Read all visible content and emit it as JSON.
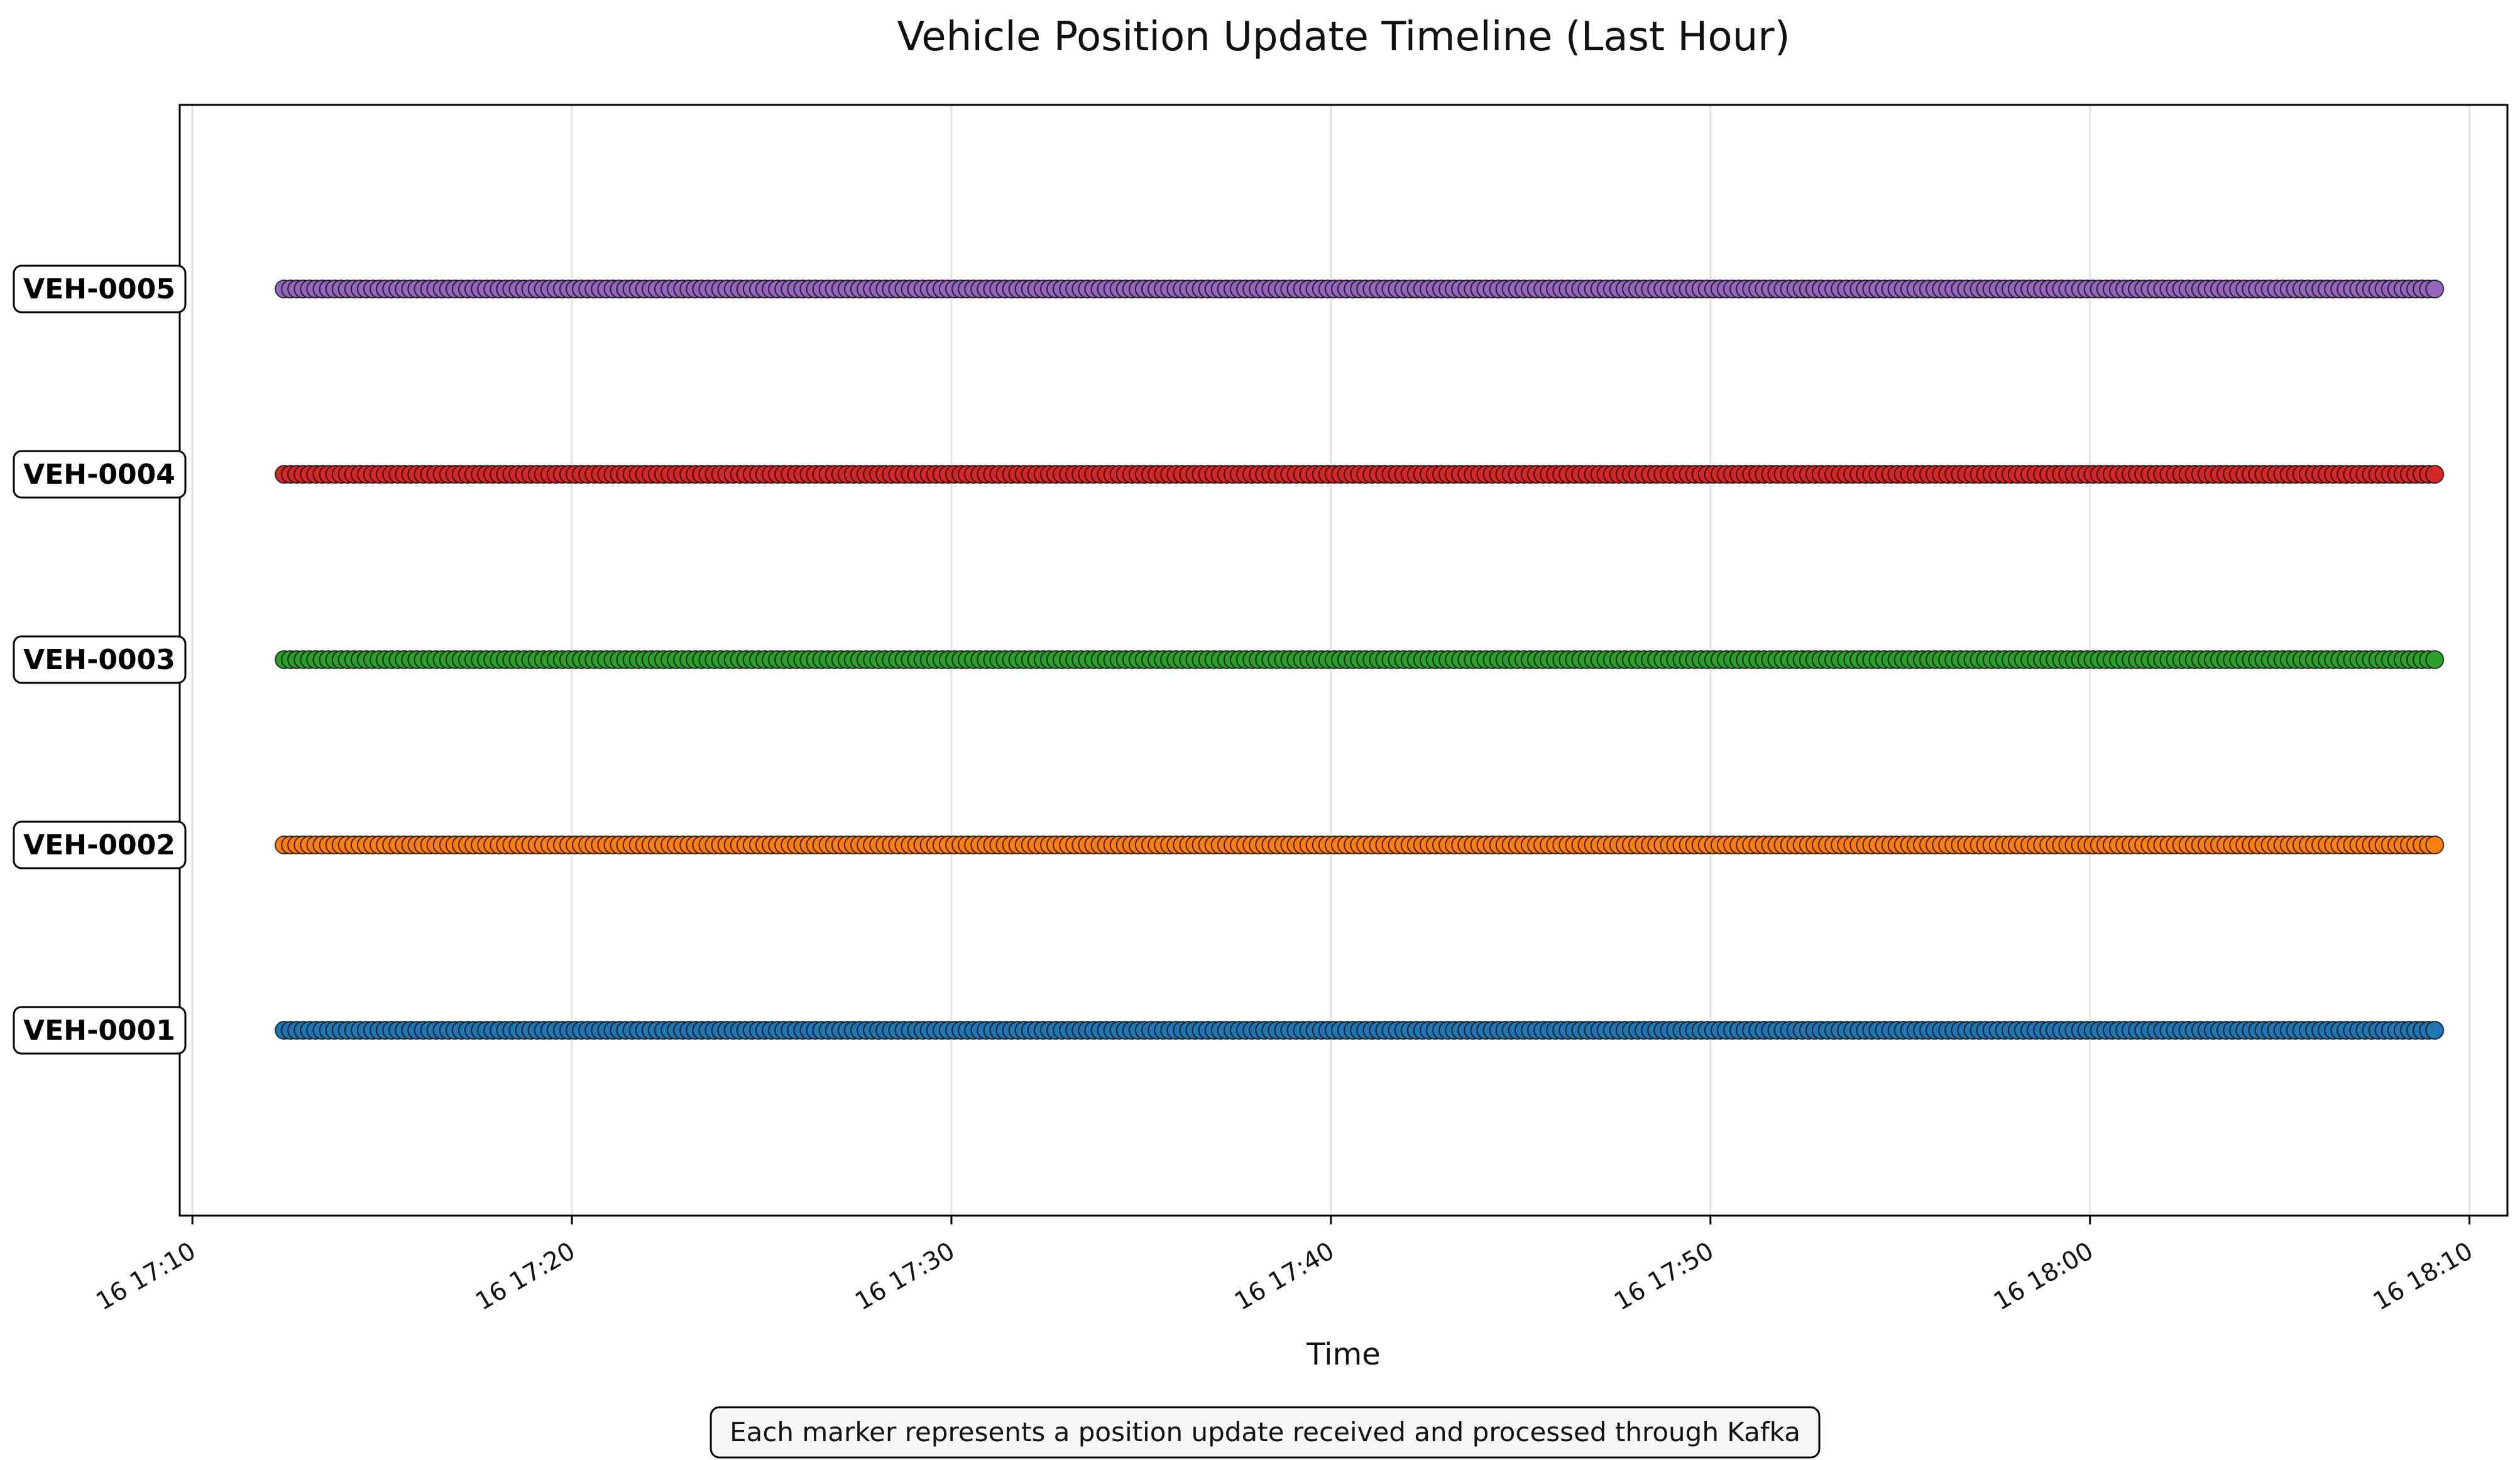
{
  "chart_data": {
    "type": "scatter",
    "title": "Vehicle Position Update Timeline (Last Hour)",
    "xlabel": "Time",
    "ylabel": "",
    "x_axis_type": "datetime",
    "xlim": [
      "16 17:09:40",
      "16 18:11:00"
    ],
    "x_ticks": [
      "16 17:10",
      "16 17:20",
      "16 17:30",
      "16 17:40",
      "16 17:50",
      "16 18:00",
      "16 18:10"
    ],
    "grid": "vertical",
    "update_interval_seconds": 10,
    "series": [
      {
        "name": "VEH-0001",
        "color": "#1f77b4",
        "start": "16 17:12:25",
        "end": "16 18:09:10"
      },
      {
        "name": "VEH-0002",
        "color": "#ff7f0e",
        "start": "16 17:12:25",
        "end": "16 18:09:10"
      },
      {
        "name": "VEH-0003",
        "color": "#2ca02c",
        "start": "16 17:12:25",
        "end": "16 18:09:10"
      },
      {
        "name": "VEH-0004",
        "color": "#d62728",
        "start": "16 17:12:25",
        "end": "16 18:09:10"
      },
      {
        "name": "VEH-0005",
        "color": "#9467bd",
        "start": "16 17:12:25",
        "end": "16 18:09:10"
      }
    ],
    "annotation": "Each marker represents a position update received and processed through Kafka"
  }
}
